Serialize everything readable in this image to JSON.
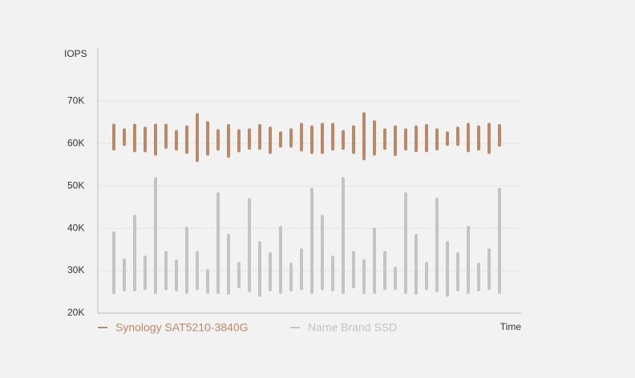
{
  "chart_data": {
    "type": "range-bar",
    "y_label": "IOPS",
    "x_label": "Time",
    "categories": [
      null,
      null,
      null,
      null,
      null,
      null,
      null,
      null,
      null,
      null,
      null,
      null,
      null,
      null,
      null,
      null,
      null,
      null,
      null,
      null,
      null,
      null,
      null,
      null,
      null,
      null,
      null,
      null,
      null,
      null,
      null,
      null,
      null,
      null,
      null,
      null,
      null,
      null
    ],
    "ylim": [
      20000,
      82500
    ],
    "yticks": [
      {
        "value": 20000,
        "label": "20K"
      },
      {
        "value": 30000,
        "label": "30K"
      },
      {
        "value": 40000,
        "label": "40K"
      },
      {
        "value": 50000,
        "label": "50K"
      },
      {
        "value": 60000,
        "label": "60K"
      },
      {
        "value": 70000,
        "label": "70K"
      }
    ],
    "grid": true,
    "legend": "bottom-left",
    "series": [
      {
        "name": "Synology SAT5210-3840G",
        "color": "#b9896a",
        "low": [
          58700,
          59800,
          58300,
          58300,
          57500,
          59100,
          58700,
          57900,
          56000,
          57500,
          58700,
          57000,
          58300,
          58900,
          58900,
          57900,
          59400,
          59400,
          58500,
          57900,
          57900,
          58700,
          58900,
          57900,
          56400,
          57500,
          58900,
          57400,
          58700,
          58300,
          58300,
          58700,
          59800,
          59800,
          58300,
          58700,
          57900,
          59600
        ],
        "high": [
          64300,
          63200,
          64300,
          63600,
          64300,
          64300,
          62800,
          63900,
          66800,
          64900,
          63000,
          64200,
          63000,
          63200,
          64200,
          63600,
          62500,
          63200,
          64500,
          63900,
          64500,
          64500,
          62800,
          63900,
          67000,
          65100,
          63200,
          63900,
          63200,
          63900,
          64200,
          63200,
          62500,
          63600,
          64500,
          63900,
          64500,
          64200
        ]
      },
      {
        "name": "Name Brand SSD",
        "color": "#c4c4c4",
        "low": [
          24900,
          25500,
          25500,
          25800,
          24900,
          25800,
          25500,
          24900,
          25800,
          24900,
          24900,
          24700,
          26200,
          25300,
          24200,
          25500,
          24900,
          25500,
          25800,
          24900,
          25800,
          25500,
          24900,
          26200,
          24900,
          24900,
          25800,
          25800,
          24900,
          24700,
          25800,
          25300,
          24200,
          25500,
          24900,
          25500,
          25800,
          24900
        ],
        "high": [
          38900,
          32500,
          42800,
          33200,
          51700,
          34300,
          32300,
          40000,
          34300,
          30000,
          48100,
          38300,
          31700,
          46800,
          36600,
          34000,
          40200,
          31500,
          34900,
          49200,
          42800,
          33200,
          51700,
          34300,
          32300,
          39800,
          34300,
          30600,
          48100,
          38300,
          31700,
          46800,
          36600,
          34000,
          40200,
          31500,
          34900,
          49200
        ]
      }
    ]
  }
}
